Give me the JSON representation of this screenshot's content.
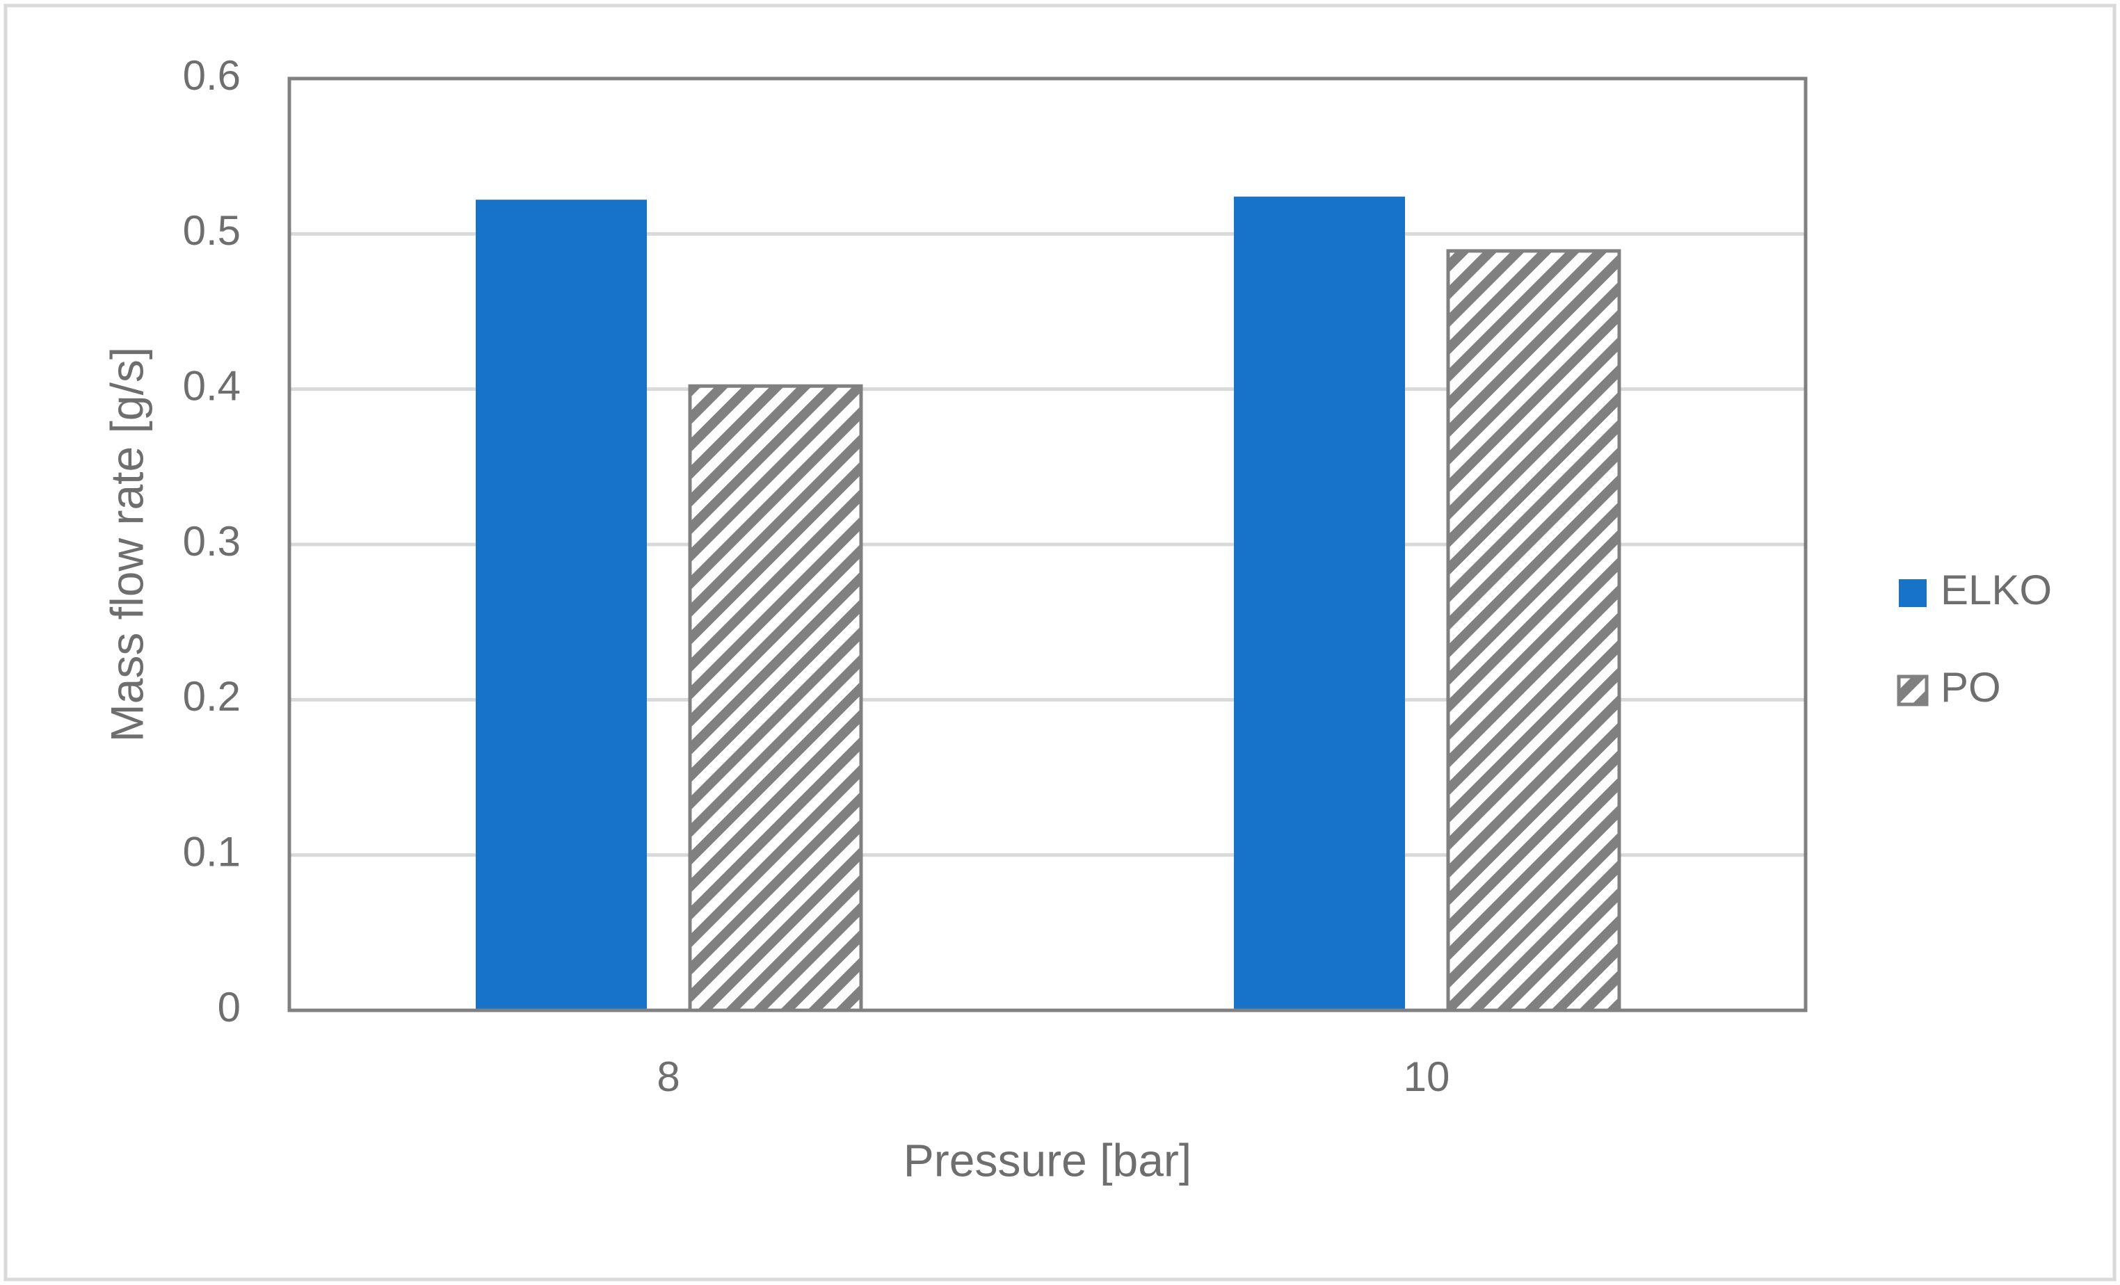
{
  "chart_data": {
    "type": "bar",
    "title": "",
    "xlabel": "Pressure [bar]",
    "ylabel": "Mass flow rate [g/s]",
    "categories": [
      "8",
      "10"
    ],
    "series": [
      {
        "name": "ELKO",
        "values": [
          0.522,
          0.524
        ],
        "color": "#1773c8",
        "fill": "solid"
      },
      {
        "name": "PO",
        "values": [
          0.402,
          0.489
        ],
        "color": "#808080",
        "fill": "diagonal-hatch"
      }
    ],
    "ylim": [
      0,
      0.6
    ],
    "yticks": [
      "0",
      "0.1",
      "0.2",
      "0.3",
      "0.4",
      "0.5",
      "0.6"
    ],
    "grid": true,
    "legend": "right",
    "colors": {
      "grid": "#d9d9d9",
      "frame": "#808080",
      "text": "#6e6e6e",
      "outer_border": "#d9d9d9"
    }
  }
}
